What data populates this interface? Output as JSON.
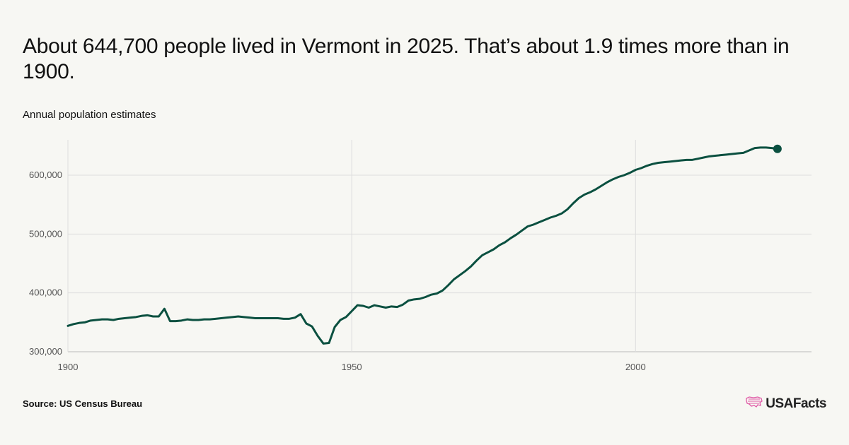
{
  "header": {
    "title": "About 644,700 people lived in Vermont in 2025. That’s about 1.9 times more than in 1900.",
    "subtitle": "Annual population estimates"
  },
  "footer": {
    "source": "Source: US Census Bureau",
    "brand": "USAFacts",
    "brand_icon": "us-map-logo-icon"
  },
  "colors": {
    "line": "#0b5040",
    "grid": "#dddddd",
    "axis": "#bbbbbb",
    "logo": "#e05aa6"
  },
  "chart_data": {
    "type": "line",
    "title": "About 644,700 people lived in Vermont in 2025. That’s about 1.9 times more than in 1900.",
    "subtitle": "Annual population estimates",
    "xlim": [
      1900,
      2031
    ],
    "ylim": [
      300000,
      660000
    ],
    "x_ticks": [
      1900,
      1950,
      2000
    ],
    "x_tick_labels": [
      "1900",
      "1950",
      "2000"
    ],
    "y_ticks": [
      300000,
      400000,
      500000,
      600000
    ],
    "y_tick_labels": [
      "300,000",
      "400,000",
      "500,000",
      "600,000"
    ],
    "grid": true,
    "legend": "none",
    "endpoint_marker": true,
    "series": [
      {
        "x": [
          1900,
          1901,
          1902,
          1903,
          1904,
          1905,
          1906,
          1907,
          1908,
          1909,
          1910,
          1911,
          1912,
          1913,
          1914,
          1915,
          1916,
          1917,
          1918,
          1919,
          1920,
          1921,
          1922,
          1923,
          1924,
          1925,
          1926,
          1927,
          1928,
          1929,
          1930,
          1931,
          1932,
          1933,
          1934,
          1935,
          1936,
          1937,
          1938,
          1939,
          1940,
          1941,
          1942,
          1943,
          1944,
          1945,
          1946,
          1947,
          1948,
          1949,
          1950,
          1951,
          1952,
          1953,
          1954,
          1955,
          1956,
          1957,
          1958,
          1959,
          1960,
          1961,
          1962,
          1963,
          1964,
          1965,
          1966,
          1967,
          1968,
          1969,
          1970,
          1971,
          1972,
          1973,
          1974,
          1975,
          1976,
          1977,
          1978,
          1979,
          1980,
          1981,
          1982,
          1983,
          1984,
          1985,
          1986,
          1987,
          1988,
          1989,
          1990,
          1991,
          1992,
          1993,
          1994,
          1995,
          1996,
          1997,
          1998,
          1999,
          2000,
          2001,
          2002,
          2003,
          2004,
          2005,
          2006,
          2007,
          2008,
          2009,
          2010,
          2011,
          2012,
          2013,
          2014,
          2015,
          2016,
          2017,
          2018,
          2019,
          2020,
          2021,
          2022,
          2023,
          2024,
          2025
        ],
        "y": [
          344000,
          347000,
          349000,
          350000,
          353000,
          354000,
          355000,
          355000,
          354000,
          356000,
          357000,
          358000,
          359000,
          361000,
          362000,
          360000,
          360000,
          373000,
          352000,
          352000,
          353000,
          355000,
          354000,
          354000,
          355000,
          355000,
          356000,
          357000,
          358000,
          359000,
          360000,
          359000,
          358000,
          357000,
          357000,
          357000,
          357000,
          357000,
          356000,
          356000,
          358000,
          364000,
          348000,
          343000,
          327000,
          314000,
          315000,
          342000,
          354000,
          359000,
          369000,
          379000,
          378000,
          375000,
          379000,
          377000,
          375000,
          377000,
          376000,
          380000,
          387000,
          389000,
          390000,
          393000,
          397000,
          399000,
          404000,
          413000,
          423000,
          430000,
          437000,
          445000,
          455000,
          464000,
          469000,
          474000,
          481000,
          486000,
          493000,
          499000,
          506000,
          513000,
          516000,
          520000,
          524000,
          528000,
          531000,
          535000,
          542000,
          552000,
          561000,
          567000,
          571000,
          576000,
          582000,
          588000,
          593000,
          597000,
          600000,
          604000,
          609000,
          612000,
          616000,
          619000,
          621000,
          622000,
          623000,
          624000,
          625000,
          626000,
          626000,
          628000,
          630000,
          632000,
          633000,
          634000,
          635000,
          636000,
          637000,
          638000,
          642000,
          646000,
          647000,
          647000,
          646000,
          644700
        ]
      }
    ]
  }
}
